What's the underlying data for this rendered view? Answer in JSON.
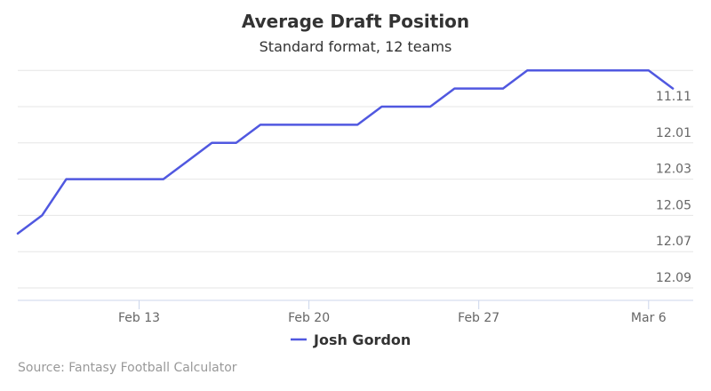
{
  "chart_data": {
    "type": "line",
    "title": "Average Draft Position",
    "subtitle": "Standard format, 12 teams",
    "x_ticks": [
      {
        "date": "2017-02-13",
        "label": "Feb 13"
      },
      {
        "date": "2017-02-20",
        "label": "Feb 20"
      },
      {
        "date": "2017-02-27",
        "label": "Feb 27"
      },
      {
        "date": "2017-03-06",
        "label": "Mar 6"
      }
    ],
    "xlim": [
      "2017-02-08",
      "2017-03-07"
    ],
    "y_ticks": [
      "11.11",
      "12.01",
      "12.03",
      "12.05",
      "12.07",
      "12.09"
    ],
    "y_scale": "reciprocal of overall pick rank: 12.01 = pick 133, 12.09 = pick 141",
    "series": [
      {
        "name": "Josh Gordon",
        "color": "#5058e0",
        "points": [
          {
            "x": "2017-02-08",
            "y": 12.07
          },
          {
            "x": "2017-02-09",
            "y": 12.057
          },
          {
            "x": "2017-02-10",
            "y": 12.041
          },
          {
            "x": "2017-02-11",
            "y": 12.041
          },
          {
            "x": "2017-02-12",
            "y": 12.04
          },
          {
            "x": "2017-02-13",
            "y": 12.037
          },
          {
            "x": "2017-02-14",
            "y": 12.036
          },
          {
            "x": "2017-02-15",
            "y": 12.032
          },
          {
            "x": "2017-02-16",
            "y": 12.023
          },
          {
            "x": "2017-02-17",
            "y": 12.015
          },
          {
            "x": "2017-02-18",
            "y": 12.013
          },
          {
            "x": "2017-02-19",
            "y": 12.007
          },
          {
            "x": "2017-02-20",
            "y": 12.01
          },
          {
            "x": "2017-02-21",
            "y": 12.007
          },
          {
            "x": "2017-02-22",
            "y": 12.006
          },
          {
            "x": "2017-02-23",
            "y": 12.004
          },
          {
            "x": "2017-02-24",
            "y": 12.003
          },
          {
            "x": "2017-02-25",
            "y": 12.001
          },
          {
            "x": "2017-02-26",
            "y": 11.11
          },
          {
            "x": "2017-02-27",
            "y": 11.11
          },
          {
            "x": "2017-02-28",
            "y": 11.11
          },
          {
            "x": "2017-03-01",
            "y": 11.1
          },
          {
            "x": "2017-03-02",
            "y": 11.1
          },
          {
            "x": "2017-03-03",
            "y": 11.1
          },
          {
            "x": "2017-03-04",
            "y": 11.1
          },
          {
            "x": "2017-03-05",
            "y": 11.1
          },
          {
            "x": "2017-03-06",
            "y": 11.1
          },
          {
            "x": "2017-03-07",
            "y": 11.11
          }
        ]
      }
    ],
    "grid": true,
    "legend_position": "bottom-center",
    "credit": "Source: Fantasy Football Calculator"
  }
}
